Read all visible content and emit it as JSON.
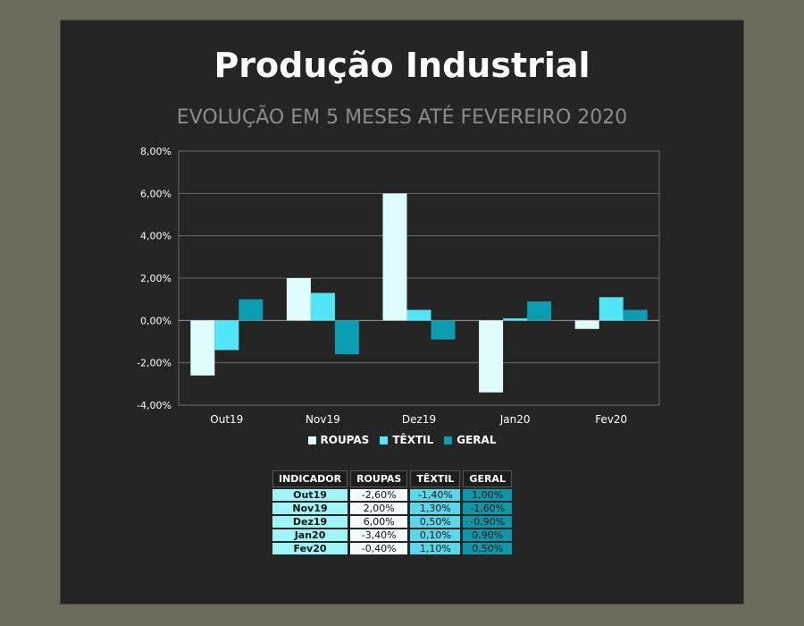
{
  "title": "Produção Industrial",
  "subtitle": "EVOLUÇÃO EM 5 MESES ATÉ FEVEREIRO 2020",
  "colors": {
    "roupas": "#e0fdfd",
    "textil": "#52e5f7",
    "geral": "#0b9db2",
    "grid": "#6b6b6b",
    "panel": "#252525",
    "background": "#6b6b5e"
  },
  "chart_data": {
    "type": "bar",
    "title": "Produção Industrial",
    "subtitle": "EVOLUÇÃO EM 5 MESES ATÉ FEVEREIRO 2020",
    "categories": [
      "Out19",
      "Nov19",
      "Dez19",
      "Jan20",
      "Fev20"
    ],
    "series": [
      {
        "name": "ROUPAS",
        "values": [
          -2.6,
          2.0,
          6.0,
          -3.4,
          -0.4
        ]
      },
      {
        "name": "TÊXTIL",
        "values": [
          -1.4,
          1.3,
          0.5,
          0.1,
          1.1
        ]
      },
      {
        "name": "GERAL",
        "values": [
          1.0,
          -1.6,
          -0.9,
          0.9,
          0.5
        ]
      }
    ],
    "ylim": [
      -4,
      8
    ],
    "yticks": [
      "-4,00%",
      "-2,00%",
      "0,00%",
      "2,00%",
      "4,00%",
      "6,00%",
      "8,00%"
    ],
    "ytick_values": [
      -4,
      -2,
      0,
      2,
      4,
      6,
      8
    ],
    "grid": true,
    "legend_position": "bottom"
  },
  "table": {
    "headers": [
      "INDICADOR",
      "ROUPAS",
      "TÊXTIL",
      "GERAL"
    ],
    "rows": [
      [
        "Out19",
        "-2,60%",
        "-1,40%",
        "1,00%"
      ],
      [
        "Nov19",
        "2,00%",
        "1,30%",
        "-1,60%"
      ],
      [
        "Dez19",
        "6,00%",
        "0,50%",
        "-0,90%"
      ],
      [
        "Jan20",
        "-3,40%",
        "0,10%",
        "0,90%"
      ],
      [
        "Fev20",
        "-0,40%",
        "1,10%",
        "0,50%"
      ]
    ]
  }
}
